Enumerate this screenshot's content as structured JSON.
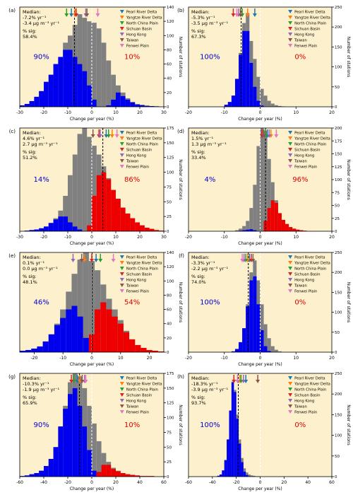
{
  "figure": {
    "xlabel": "Change per year (%)",
    "ylabel_right": "Number of stations",
    "median_heading": "Median:",
    "sig_heading": "% sig:",
    "region_colors": {
      "Pearl River Delta": "#1f77b4",
      "Yangtze River Delta": "#ff7f0e",
      "North China Plain": "#2ca02c",
      "Sichuan Basin": "#d62728",
      "Hong Kong": "#9467bd",
      "Taiwan": "#8c564b",
      "Fenwei Plain": "#e377c2"
    },
    "colors": {
      "bg": "#fdf0cc",
      "sig_neg": "#0000ee",
      "sig_pos": "#ee0000",
      "nonsig": "#808080",
      "neg_pct": "#0000cc",
      "pos_pct": "#dd0000"
    }
  },
  "chart_data": [
    {
      "panel": "(a)",
      "type": "bar",
      "xlim": [
        -30,
        30
      ],
      "ylim": [
        0,
        140
      ],
      "xticks": [
        -30,
        -20,
        -10,
        0,
        10,
        20,
        30
      ],
      "yticks": [
        0,
        20,
        40,
        60,
        80,
        100,
        120,
        140
      ],
      "median_pct": "-7.2% yr⁻¹",
      "median_abs": "-3.4 μg m⁻³ yr⁻¹",
      "sig": "58.4%",
      "neg_pct": "90%",
      "pos_pct": "10%",
      "median_x": -7.2,
      "bin_start": -30,
      "bin_width": 2,
      "totals": [
        2,
        4,
        8,
        14,
        22,
        35,
        45,
        60,
        70,
        90,
        100,
        115,
        130,
        125,
        120,
        118,
        110,
        90,
        65,
        45,
        30,
        20,
        12,
        7,
        4,
        3,
        2,
        1,
        1,
        0
      ],
      "sig_counts": [
        2,
        4,
        8,
        14,
        22,
        35,
        45,
        60,
        70,
        80,
        80,
        70,
        60,
        50,
        30,
        10,
        0,
        0,
        2,
        10,
        20,
        15,
        10,
        6,
        3,
        2,
        1,
        1,
        0,
        0
      ],
      "region_markers": {
        "Pearl River Delta": -8.5,
        "Yangtze River Delta": -7.0,
        "North China Plain": -10.5,
        "Sichuan Basin": -6.5,
        "Hong Kong": -2.5,
        "Taiwan": -2.0,
        "Fenwei Plain": 2.5
      }
    },
    {
      "panel": "(b)",
      "type": "bar",
      "xlim": [
        -20,
        20
      ],
      "ylim": [
        0,
        250
      ],
      "xticks": [
        -20,
        -10,
        0,
        10,
        20
      ],
      "yticks": [
        0,
        50,
        100,
        150,
        200,
        250
      ],
      "median_pct": "-5.3% yr⁻¹",
      "median_abs": "-3.5 μg m⁻³ yr⁻¹",
      "sig": "67.3%",
      "neg_pct": "100%",
      "pos_pct": "0%",
      "median_x": -5.3,
      "bin_start": -20,
      "bin_width": 1,
      "totals": [
        0,
        0,
        0,
        0,
        0,
        0,
        0,
        0,
        0,
        0,
        5,
        12,
        28,
        70,
        135,
        210,
        235,
        165,
        120,
        75,
        45,
        28,
        15,
        8,
        4,
        2,
        1,
        0,
        0,
        0,
        0,
        0,
        0,
        0,
        0,
        0,
        0,
        0,
        0,
        0
      ],
      "sig_counts": [
        0,
        0,
        0,
        0,
        0,
        0,
        0,
        0,
        0,
        0,
        5,
        12,
        28,
        70,
        130,
        190,
        190,
        110,
        50,
        15,
        3,
        0,
        0,
        0,
        0,
        0,
        0,
        0,
        0,
        0,
        0,
        0,
        0,
        0,
        0,
        0,
        0,
        0,
        0,
        0
      ],
      "sig_pos": [],
      "region_markers": {
        "Pearl River Delta": -1.5,
        "Yangtze River Delta": -3.5,
        "North China Plain": -5.0,
        "Sichuan Basin": -7.5,
        "Hong Kong": -6.0,
        "Taiwan": -5.5,
        "Fenwei Plain": -6.5
      }
    },
    {
      "panel": "(c)",
      "type": "bar",
      "xlim": [
        -30,
        30
      ],
      "ylim": [
        0,
        175
      ],
      "xticks": [
        -30,
        -20,
        -10,
        0,
        10,
        20,
        30
      ],
      "yticks": [
        0,
        25,
        50,
        75,
        100,
        125,
        150,
        175
      ],
      "median_pct": "4.6% yr⁻¹",
      "median_abs": "2.7 μg m⁻³ yr⁻¹",
      "sig": "51.2%",
      "neg_pct": "14%",
      "pos_pct": "86%",
      "median_x": 4.6,
      "bin_start": -30,
      "bin_width": 2,
      "totals": [
        0,
        1,
        2,
        3,
        5,
        8,
        14,
        22,
        35,
        60,
        95,
        130,
        165,
        178,
        160,
        145,
        130,
        110,
        90,
        70,
        55,
        40,
        30,
        22,
        15,
        10,
        6,
        4,
        2,
        1
      ],
      "sig_counts": [
        0,
        1,
        2,
        3,
        5,
        8,
        14,
        20,
        25,
        25,
        15,
        8,
        3,
        0,
        0,
        0,
        0,
        0,
        0,
        0,
        0,
        0,
        0,
        0,
        0,
        0,
        0,
        0,
        0,
        0
      ],
      "sig_pos": [
        0,
        0,
        0,
        0,
        0,
        0,
        0,
        0,
        0,
        0,
        0,
        0,
        0,
        0,
        10,
        60,
        95,
        100,
        88,
        70,
        55,
        40,
        30,
        22,
        15,
        10,
        6,
        4,
        2,
        1
      ],
      "region_markers": {
        "Pearl River Delta": 6.0,
        "Yangtze River Delta": 8.5,
        "North China Plain": 7.0,
        "Sichuan Basin": 3.0,
        "Hong Kong": 3.5,
        "Taiwan": 0.5,
        "Fenwei Plain": 10.5
      }
    },
    {
      "panel": "(d)",
      "type": "bar",
      "xlim": [
        -20,
        20
      ],
      "ylim": [
        0,
        200
      ],
      "xticks": [
        -20,
        -10,
        0,
        10,
        20
      ],
      "yticks": [
        0,
        25,
        50,
        75,
        100,
        125,
        150,
        175,
        200
      ],
      "median_pct": "1.5% yr⁻¹",
      "median_abs": "1.3 μg m⁻³ yr⁻¹",
      "sig": "33.4%",
      "neg_pct": "4%",
      "pos_pct": "96%",
      "median_x": 1.5,
      "bin_start": -20,
      "bin_width": 1,
      "totals": [
        0,
        0,
        0,
        0,
        0,
        0,
        0,
        0,
        0,
        0,
        0,
        0,
        0,
        2,
        5,
        10,
        20,
        45,
        90,
        165,
        210,
        195,
        140,
        95,
        60,
        35,
        22,
        14,
        8,
        5,
        3,
        2,
        1,
        0,
        0,
        0,
        0,
        0,
        0,
        0
      ],
      "sig_counts": [
        0,
        0,
        0,
        0,
        0,
        0,
        0,
        0,
        0,
        0,
        0,
        0,
        0,
        0,
        1,
        2,
        3,
        4,
        2,
        0,
        0,
        0,
        0,
        0,
        0,
        0,
        0,
        0,
        0,
        0,
        0,
        0,
        0,
        0,
        0,
        0,
        0,
        0,
        0,
        0
      ],
      "sig_pos": [
        0,
        0,
        0,
        0,
        0,
        0,
        0,
        0,
        0,
        0,
        0,
        0,
        0,
        0,
        0,
        0,
        0,
        0,
        0,
        0,
        0,
        20,
        45,
        60,
        55,
        35,
        22,
        14,
        8,
        5,
        3,
        2,
        1,
        0,
        0,
        0,
        0,
        0,
        0,
        0
      ],
      "region_markers": {
        "Pearl River Delta": 2.0,
        "Yangtze River Delta": 3.0,
        "North China Plain": 1.5,
        "Sichuan Basin": 0.5,
        "Hong Kong": 2.5,
        "Taiwan": 1.0,
        "Fenwei Plain": 4.5
      }
    },
    {
      "panel": "(e)",
      "type": "bar",
      "xlim": [
        -25,
        25
      ],
      "ylim": [
        0,
        140
      ],
      "xticks": [
        -20,
        -10,
        0,
        10,
        20
      ],
      "yticks": [
        0,
        20,
        40,
        60,
        80,
        100,
        120,
        140
      ],
      "median_pct": "0.1% yr⁻¹",
      "median_abs": "0.0 μg m⁻³ yr⁻¹",
      "sig": "48.1%",
      "neg_pct": "46%",
      "pos_pct": "54%",
      "median_x": 0.1,
      "bin_start": -25,
      "bin_width": 2,
      "totals": [
        2,
        3,
        5,
        8,
        15,
        25,
        40,
        60,
        85,
        110,
        130,
        140,
        128,
        115,
        95,
        75,
        60,
        45,
        30,
        18,
        10,
        6,
        3,
        2,
        1
      ],
      "sig_counts": [
        2,
        3,
        5,
        8,
        15,
        25,
        38,
        48,
        60,
        65,
        50,
        20,
        0,
        0,
        0,
        0,
        0,
        0,
        0,
        0,
        0,
        0,
        0,
        0,
        0
      ],
      "sig_pos": [
        0,
        0,
        0,
        0,
        0,
        0,
        0,
        0,
        0,
        0,
        0,
        0,
        25,
        60,
        70,
        60,
        50,
        40,
        28,
        18,
        10,
        6,
        3,
        2,
        1
      ],
      "region_markers": {
        "Pearl River Delta": 1.5,
        "Yangtze River Delta": -2.5,
        "North China Plain": 3.0,
        "Sichuan Basin": 0.0,
        "Hong Kong": -6.5,
        "Taiwan": -3.5,
        "Fenwei Plain": 7.5
      }
    },
    {
      "panel": "(f)",
      "type": "bar",
      "xlim": [
        -20,
        20
      ],
      "ylim": [
        0,
        250
      ],
      "xticks": [
        -20,
        -10,
        0,
        10,
        20
      ],
      "yticks": [
        0,
        50,
        100,
        150,
        200,
        250
      ],
      "median_pct": "-3.3% yr⁻¹",
      "median_abs": "-2.2 μg m⁻³ yr⁻¹",
      "sig": "74.0%",
      "neg_pct": "100%",
      "pos_pct": "0%",
      "median_x": -3.3,
      "bin_start": -20,
      "bin_width": 1,
      "totals": [
        0,
        0,
        0,
        0,
        0,
        0,
        0,
        0,
        0,
        0,
        0,
        0,
        2,
        8,
        25,
        60,
        120,
        200,
        230,
        180,
        120,
        70,
        35,
        15,
        6,
        2,
        0,
        0,
        0,
        0,
        0,
        0,
        0,
        0,
        0,
        0,
        0,
        0,
        0,
        0
      ],
      "sig_counts": [
        0,
        0,
        0,
        0,
        0,
        0,
        0,
        0,
        0,
        0,
        0,
        0,
        2,
        8,
        25,
        60,
        115,
        180,
        190,
        120,
        55,
        15,
        3,
        0,
        0,
        0,
        0,
        0,
        0,
        0,
        0,
        0,
        0,
        0,
        0,
        0,
        0,
        0,
        0,
        0
      ],
      "sig_pos": [],
      "region_markers": {
        "Pearl River Delta": -3.0,
        "Yangtze River Delta": -3.5,
        "North China Plain": -4.0,
        "Sichuan Basin": -2.5,
        "Hong Kong": -4.5,
        "Taiwan": -2.0,
        "Fenwei Plain": -5.0
      }
    },
    {
      "panel": "(g)",
      "type": "bar",
      "xlim": [
        -60,
        60
      ],
      "ylim": [
        0,
        175
      ],
      "xticks": [
        -60,
        -40,
        -20,
        0,
        20,
        40,
        60
      ],
      "yticks": [
        0,
        25,
        50,
        75,
        100,
        125,
        150,
        175
      ],
      "median_pct": "-10.3% yr⁻¹",
      "median_abs": "-1.9 μg m⁻³ yr⁻¹",
      "sig": "65.9%",
      "neg_pct": "90%",
      "pos_pct": "10%",
      "median_x": -10.3,
      "bin_start": -60,
      "bin_width": 4,
      "totals": [
        1,
        2,
        4,
        6,
        10,
        18,
        30,
        50,
        85,
        120,
        160,
        178,
        170,
        150,
        120,
        90,
        60,
        40,
        25,
        15,
        10,
        6,
        4,
        3,
        2,
        1,
        1,
        1,
        0,
        0
      ],
      "sig_counts": [
        1,
        2,
        4,
        6,
        10,
        18,
        30,
        50,
        85,
        115,
        140,
        150,
        120,
        85,
        45,
        10,
        0,
        0,
        0,
        0,
        0,
        0,
        0,
        0,
        0,
        0,
        0,
        0,
        0,
        0
      ],
      "sig_pos": [
        0,
        0,
        0,
        0,
        0,
        0,
        0,
        0,
        0,
        0,
        0,
        0,
        0,
        0,
        0,
        0,
        8,
        20,
        20,
        13,
        9,
        6,
        4,
        3,
        2,
        1,
        1,
        1,
        0,
        0
      ],
      "region_markers": {
        "Pearl River Delta": -12.0,
        "Yangtze River Delta": -10.0,
        "North China Plain": -15.0,
        "Sichuan Basin": -17.0,
        "Hong Kong": -6.0,
        "Taiwan": -8.0,
        "Fenwei Plain": -5.0
      }
    },
    {
      "panel": "(h)",
      "type": "bar",
      "xlim": [
        -60,
        60
      ],
      "ylim": [
        0,
        250
      ],
      "xticks": [
        -60,
        -40,
        -20,
        0,
        20,
        40,
        60
      ],
      "yticks": [
        0,
        50,
        100,
        150,
        200,
        250
      ],
      "median_pct": "-18.3% yr⁻¹",
      "median_abs": "-3.9 μg m⁻³ yr⁻¹",
      "sig": "93.7%",
      "neg_pct": "100%",
      "pos_pct": "0%",
      "median_x": -18.3,
      "bin_start": -60,
      "bin_width": 2,
      "totals": [
        0,
        0,
        0,
        0,
        0,
        0,
        0,
        0,
        0,
        0,
        0,
        0,
        2,
        5,
        15,
        40,
        90,
        160,
        230,
        210,
        150,
        90,
        45,
        20,
        10,
        5,
        3,
        2,
        1,
        1,
        0,
        0,
        0,
        0,
        0,
        0,
        0,
        0,
        0,
        0,
        0,
        0,
        0,
        0,
        0,
        0,
        0,
        0,
        0,
        0,
        0,
        0,
        0,
        0,
        0,
        0,
        0,
        0,
        0,
        0
      ],
      "sig_counts": [
        0,
        0,
        0,
        0,
        0,
        0,
        0,
        0,
        0,
        0,
        0,
        0,
        2,
        5,
        15,
        40,
        90,
        160,
        228,
        205,
        140,
        80,
        35,
        12,
        4,
        1,
        0,
        0,
        0,
        0,
        0,
        0,
        0,
        0,
        0,
        0,
        0,
        0,
        0,
        0,
        0,
        0,
        0,
        0,
        0,
        0,
        0,
        0,
        0,
        0,
        0,
        0,
        0,
        0,
        0,
        0,
        0,
        0,
        0,
        0
      ],
      "sig_pos": [],
      "region_markers": {
        "Pearl River Delta": -12.0,
        "Yangtze River Delta": -17.0,
        "North China Plain": -16.0,
        "Sichuan Basin": -22.0,
        "Hong Kong": -14.0,
        "Taiwan": -2.0,
        "Fenwei Plain": -19.0
      }
    }
  ]
}
